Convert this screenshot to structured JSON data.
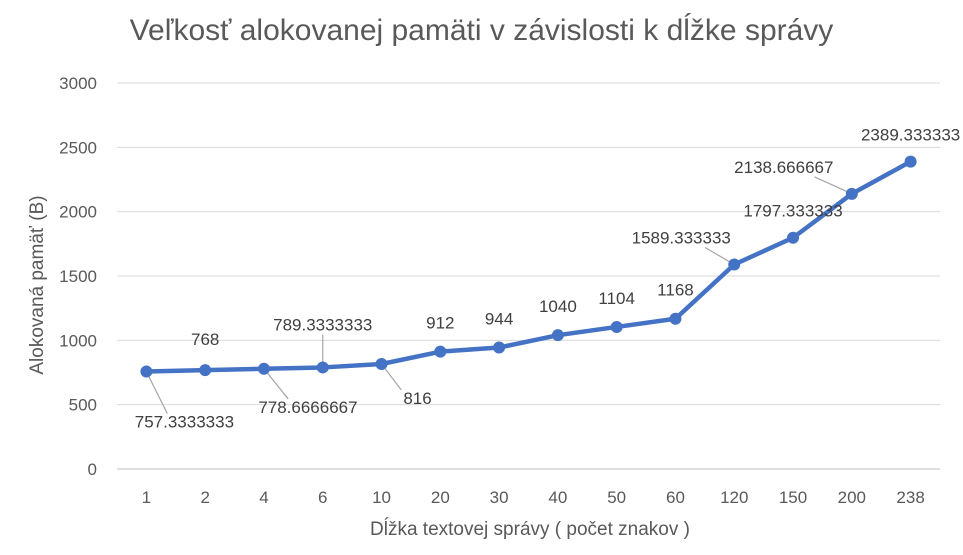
{
  "chart_data": {
    "type": "line",
    "title": "Veľkosť alokovanej pamäti v závislosti k dĺžke správy",
    "xlabel": "Dĺžka textovej správy ( počet znakov )",
    "ylabel": "Alokovaná pamäť (B)",
    "categories": [
      "1",
      "2",
      "4",
      "6",
      "10",
      "20",
      "30",
      "40",
      "50",
      "60",
      "120",
      "150",
      "200",
      "238"
    ],
    "series": [
      {
        "values": [
          757.3333333,
          768,
          778.6666667,
          789.3333333,
          816,
          912,
          944,
          1040,
          1104,
          1168,
          1589.333333,
          1797.333333,
          2138.666667,
          2389.333333
        ],
        "data_labels": [
          "757.3333333",
          "768",
          "778.6666667",
          "789.3333333",
          "816",
          "912",
          "944",
          "1040",
          "1104",
          "1168",
          "1589.333333",
          "1797.333333",
          "2138.666667",
          "2389.333333"
        ],
        "color": "#4472C4"
      }
    ],
    "ylim": [
      0,
      3000
    ],
    "yticks": [
      "0",
      "500",
      "1000",
      "1500",
      "2000",
      "2500",
      "3000"
    ],
    "grid": true,
    "legend": "none"
  }
}
